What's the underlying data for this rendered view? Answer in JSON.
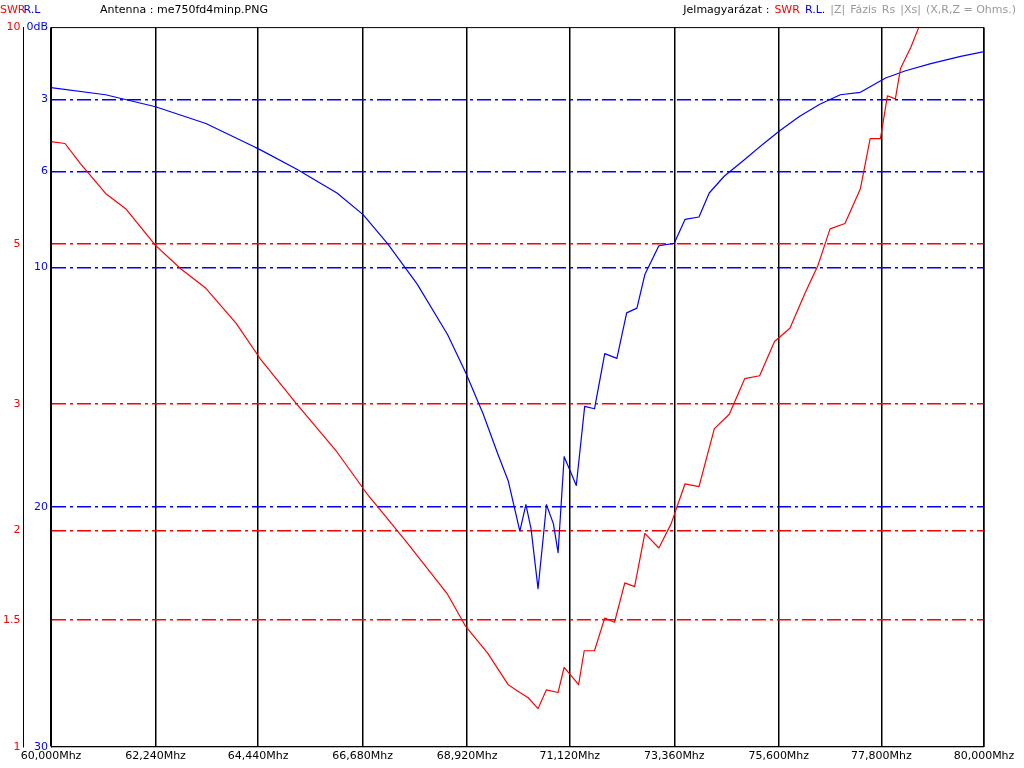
{
  "chart_data": {
    "type": "line",
    "title": "Antenna : me750fd4minp.PNG",
    "ylabel": "R.L",
    "y2label": "SWR",
    "legend_title": "Jelmagyarázat :",
    "legend": "top right",
    "grid": true,
    "marker": "none",
    "log": "y2",
    "annotations": [
      "|Z|",
      "Fázis",
      "Rs",
      "|Xs|",
      "(X,R,Z = Ohms.)"
    ],
    "xlim": [
      60000,
      80000
    ],
    "xticks": [
      {
        "value": 60000,
        "label": "60,000Mhz"
      },
      {
        "value": 62240,
        "label": "62,240Mhz"
      },
      {
        "value": 64440,
        "label": "64,440Mhz"
      },
      {
        "value": 66680,
        "label": "66,680Mhz"
      },
      {
        "value": 68920,
        "label": "68,920Mhz"
      },
      {
        "value": 71120,
        "label": "71,120Mhz"
      },
      {
        "value": 73360,
        "label": "73,360Mhz"
      },
      {
        "value": 75600,
        "label": "75,600Mhz"
      },
      {
        "value": 77800,
        "label": "77,800Mhz"
      },
      {
        "value": 80000,
        "label": "80,000Mhz"
      }
    ],
    "ylim": [
      30,
      0
    ],
    "yticks": [
      {
        "value": 0,
        "label": "0dB"
      },
      3,
      6,
      10,
      20,
      30
    ],
    "y2lim": [
      1,
      10
    ],
    "y2ticks": [
      1,
      1.5,
      2,
      3,
      5,
      10
    ],
    "series": [
      {
        "name": "SWR",
        "color": "#ff0000",
        "axis": "y2",
        "x": [
          60000,
          60300,
          60630,
          61170,
          61600,
          62240,
          62780,
          63320,
          63970,
          64490,
          65260,
          66130,
          66770,
          67640,
          68500,
          68890,
          69360,
          69800,
          70050,
          70230,
          70440,
          70620,
          70870,
          71000,
          71130,
          71310,
          71430,
          71650,
          71870,
          72080,
          72300,
          72510,
          72730,
          73030,
          73290,
          73590,
          73890,
          74220,
          74540,
          74870,
          75190,
          75510,
          75840,
          76160,
          76440,
          76700,
          77020,
          77350,
          77560,
          77780,
          77930,
          78100,
          78210,
          78430,
          78600
        ],
        "values": [
          6.94,
          6.9,
          6.47,
          5.88,
          5.6,
          4.98,
          4.62,
          4.34,
          3.88,
          3.46,
          3.0,
          2.57,
          2.25,
          1.92,
          1.63,
          1.47,
          1.35,
          1.22,
          1.19,
          1.17,
          1.13,
          1.2,
          1.19,
          1.29,
          1.26,
          1.22,
          1.36,
          1.36,
          1.51,
          1.49,
          1.69,
          1.67,
          1.98,
          1.89,
          2.04,
          2.32,
          2.3,
          2.77,
          2.9,
          3.25,
          3.28,
          3.66,
          3.82,
          4.27,
          4.67,
          5.25,
          5.34,
          5.97,
          7.01,
          7.01,
          8.04,
          7.96,
          8.77,
          9.38,
          10
        ]
      },
      {
        "name": "R.L.",
        "color": "#0000ff",
        "axis": "y",
        "x": [
          60000,
          61170,
          62240,
          63320,
          64490,
          65260,
          66130,
          66690,
          67210,
          67850,
          68500,
          68890,
          69260,
          69580,
          69800,
          70050,
          70180,
          70290,
          70440,
          70550,
          70620,
          70770,
          70870,
          71000,
          71130,
          71260,
          71440,
          71650,
          71870,
          72130,
          72340,
          72560,
          72730,
          73030,
          73360,
          73590,
          73890,
          74110,
          74430,
          74870,
          75300,
          75620,
          76050,
          76480,
          76920,
          77350,
          77890,
          78320,
          78860,
          79500,
          80000
        ],
        "values": [
          2.5,
          2.8,
          3.3,
          4.0,
          5.1,
          5.9,
          6.9,
          7.8,
          9.0,
          10.7,
          12.8,
          14.4,
          16.1,
          17.8,
          18.9,
          21.0,
          19.9,
          20.9,
          23.4,
          21.3,
          19.9,
          20.7,
          21.9,
          17.9,
          18.5,
          19.1,
          15.8,
          15.9,
          13.6,
          13.8,
          11.9,
          11.7,
          10.3,
          9.1,
          9.0,
          8.0,
          7.9,
          6.9,
          6.2,
          5.5,
          4.8,
          4.3,
          3.7,
          3.2,
          2.8,
          2.7,
          2.1,
          1.8,
          1.5,
          1.2,
          1.0
        ]
      }
    ]
  }
}
